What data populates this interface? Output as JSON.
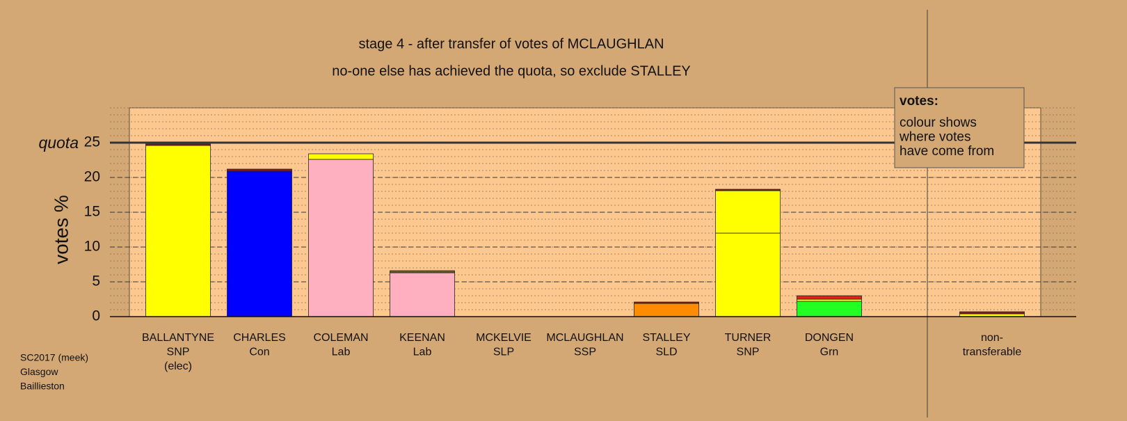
{
  "chart_data": {
    "type": "stacked-bar",
    "title": "stage 4 - after transfer of votes of MCLAUGHLAN",
    "subtitle": "no-one else has achieved the quota, so exclude STALLEY",
    "ylabel": "votes %",
    "ylim": [
      0,
      30
    ],
    "yticks": [
      0,
      5,
      10,
      15,
      20,
      25
    ],
    "grid": true,
    "quota": {
      "value": 25,
      "label": "quota"
    },
    "bars": [
      {
        "label": [
          "BALLANTYNE",
          "SNP",
          "(elec)"
        ],
        "segments": [
          {
            "value": 24.6,
            "color": "#ffff00"
          },
          {
            "value": 0.2,
            "color": "#8b1a1a"
          }
        ]
      },
      {
        "label": [
          "CHARLES",
          "Con"
        ],
        "segments": [
          {
            "value": 20.9,
            "color": "#0000ff"
          },
          {
            "value": 0.3,
            "color": "#8b1a1a"
          }
        ]
      },
      {
        "label": [
          "COLEMAN",
          "Lab"
        ],
        "segments": [
          {
            "value": 22.6,
            "color": "#ffb0c0"
          },
          {
            "value": 0.8,
            "color": "#ffff00"
          }
        ]
      },
      {
        "label": [
          "KEENAN",
          "Lab"
        ],
        "segments": [
          {
            "value": 6.3,
            "color": "#ffb0c0"
          },
          {
            "value": 0.3,
            "color": "#6b5a2a"
          }
        ]
      },
      {
        "label": [
          "MCKELVIE",
          "SLP"
        ],
        "segments": [
          {
            "value": 0,
            "color": "#8b1a1a"
          }
        ]
      },
      {
        "label": [
          "MCLAUGHLAN",
          "SSP"
        ],
        "segments": [
          {
            "value": 0,
            "color": "#8b1a1a"
          }
        ]
      },
      {
        "label": [
          "STALLEY",
          "SLD"
        ],
        "segments": [
          {
            "value": 1.9,
            "color": "#ff8c00"
          },
          {
            "value": 0.2,
            "color": "#8b1a1a"
          }
        ]
      },
      {
        "label": [
          "TURNER",
          "SNP"
        ],
        "segments": [
          {
            "value": 12.0,
            "color": "#ffff00"
          },
          {
            "value": 6.1,
            "color": "#ffff00"
          },
          {
            "value": 0.2,
            "color": "#8b1a1a"
          }
        ]
      },
      {
        "label": [
          "DONGEN",
          "Grn"
        ],
        "segments": [
          {
            "value": 2.2,
            "color": "#22ff22"
          },
          {
            "value": 0.3,
            "color": "#ffff00"
          },
          {
            "value": 0.5,
            "color": "#dd2222"
          }
        ]
      }
    ],
    "nontransferable": {
      "label": [
        "non-",
        "transferable"
      ],
      "segments": [
        {
          "value": 0.4,
          "color": "#ffff00"
        },
        {
          "value": 0.3,
          "color": "#8b1a1a"
        }
      ]
    },
    "legend": {
      "title": "votes:",
      "lines": [
        "colour shows",
        "where votes",
        "have come from"
      ]
    },
    "footer": [
      "SC2017 (meek)",
      "Glasgow",
      "Baillieston"
    ]
  }
}
